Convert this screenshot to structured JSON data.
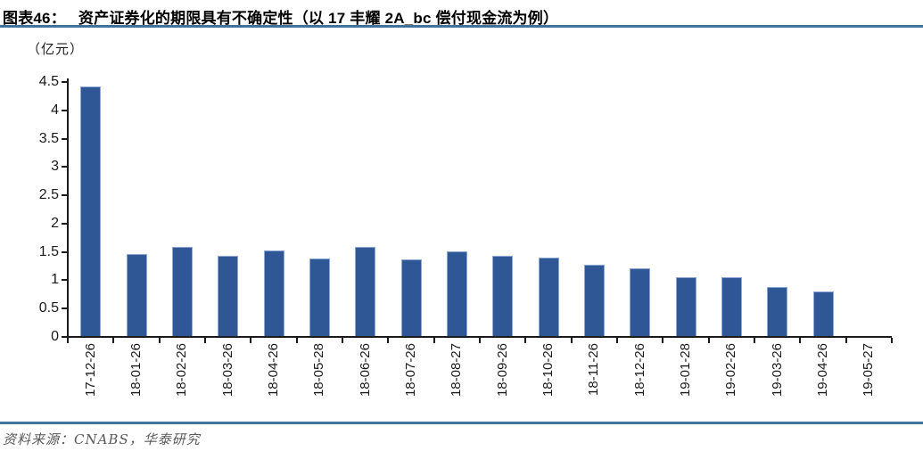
{
  "header": {
    "label": "图表46：",
    "title": "资产证券化的期限具有不确定性（以 17 丰耀 2A_bc 偿付现金流为例）"
  },
  "footer": {
    "source": "资料来源：CNABS，华泰研究"
  },
  "chart_data": {
    "type": "bar",
    "title": "资产证券化的期限具有不确定性（以 17 丰耀 2A_bc 偿付现金流为例）",
    "unit_label": "（亿元）",
    "xlabel": "",
    "ylabel": "（亿元）",
    "categories": [
      "17-12-26",
      "18-01-26",
      "18-02-26",
      "18-03-26",
      "18-04-26",
      "18-05-28",
      "18-06-26",
      "18-07-26",
      "18-08-27",
      "18-09-26",
      "18-10-26",
      "18-11-26",
      "18-12-26",
      "19-01-28",
      "19-02-26",
      "19-03-26",
      "19-04-26",
      "19-05-27"
    ],
    "values": [
      4.4,
      1.45,
      1.57,
      1.42,
      1.51,
      1.37,
      1.58,
      1.35,
      1.49,
      1.41,
      1.38,
      1.26,
      1.19,
      1.04,
      1.04,
      0.86,
      0.79,
      0
    ],
    "ylim": [
      0,
      4.5
    ],
    "yticks": [
      0,
      0.5,
      1,
      1.5,
      2,
      2.5,
      3,
      3.5,
      4,
      4.5
    ],
    "grid": false,
    "legend_position": "none",
    "x_label_rotation": -90
  },
  "colors": {
    "bar_fill": "#2F5795",
    "bar_border": "#8EA9D6",
    "axis": "#1a1a1a",
    "rule_blue": "#44719C",
    "footer_text": "#595959"
  }
}
